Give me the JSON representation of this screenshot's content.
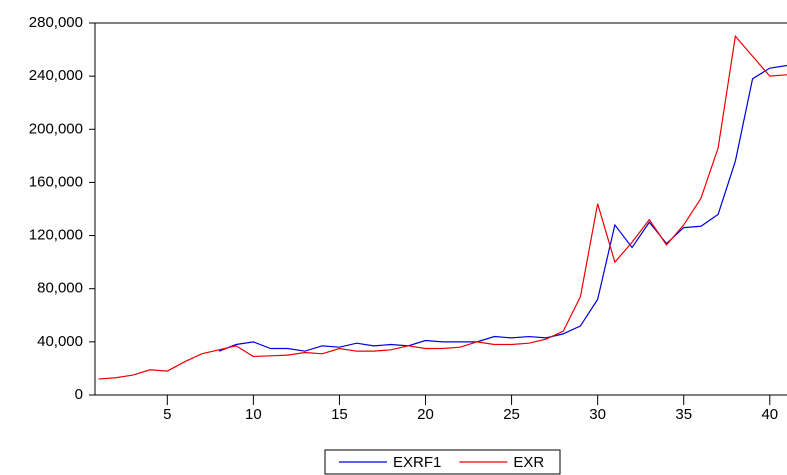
{
  "chart_data": {
    "type": "line",
    "x": [
      1,
      2,
      3,
      4,
      5,
      6,
      7,
      8,
      9,
      10,
      11,
      12,
      13,
      14,
      15,
      16,
      17,
      18,
      19,
      20,
      21,
      22,
      23,
      24,
      25,
      26,
      27,
      28,
      29,
      30,
      31,
      32,
      33,
      34,
      35,
      36,
      37,
      38,
      39,
      40,
      41
    ],
    "series": [
      {
        "name": "EXRF1",
        "color": "#0000dd",
        "values": [
          null,
          null,
          null,
          null,
          null,
          null,
          null,
          33000,
          38000,
          40000,
          35000,
          35000,
          33000,
          37000,
          36000,
          39000,
          37000,
          38000,
          37000,
          41000,
          40000,
          40000,
          40000,
          44000,
          43000,
          44000,
          43000,
          46000,
          52000,
          72000,
          128000,
          111000,
          130000,
          114000,
          126000,
          127000,
          136000,
          176000,
          238000,
          246000,
          248000
        ]
      },
      {
        "name": "EXR",
        "color": "#ee0000",
        "values": [
          12000,
          13000,
          15000,
          19000,
          18000,
          25000,
          31000,
          34000,
          37000,
          29000,
          29500,
          30000,
          32000,
          31000,
          35000,
          33000,
          33000,
          34000,
          37000,
          35000,
          35000,
          36000,
          40000,
          38000,
          38000,
          39000,
          42000,
          48000,
          74000,
          144000,
          100000,
          115000,
          132000,
          113000,
          128000,
          148000,
          186000,
          270000,
          255000,
          240000,
          241000
        ]
      }
    ],
    "xlim": [
      0.8,
      41
    ],
    "xticks": [
      5,
      10,
      15,
      20,
      25,
      30,
      35,
      40
    ],
    "ylim": [
      0,
      280000
    ],
    "yticks": [
      0,
      {
        "value": 40000,
        "label": "40,000"
      },
      {
        "value": 80000,
        "label": "80,000"
      },
      {
        "value": 120000,
        "label": "120,000"
      },
      {
        "value": 160000,
        "label": "160,000"
      },
      {
        "value": 200000,
        "label": "200,000"
      },
      {
        "value": 240000,
        "label": "240,000"
      },
      {
        "value": 280000,
        "label": "280,000"
      }
    ],
    "legend": "bottom"
  }
}
